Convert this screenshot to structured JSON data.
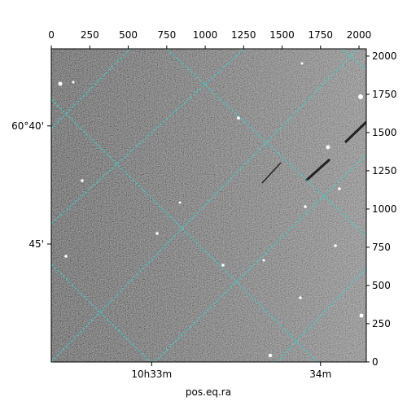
{
  "chart_data": {
    "type": "image",
    "xlabel": "pos.eq.ra",
    "xlim": [
      -0.5,
      2047.5
    ],
    "ylim": [
      -0.5,
      2047.5
    ],
    "xticks": [
      0,
      250,
      500,
      750,
      1000,
      1250,
      1500,
      1750,
      2000
    ],
    "yticks": [
      0,
      250,
      500,
      750,
      1000,
      1250,
      1500,
      1750,
      2000
    ],
    "world_xticks": [
      {
        "value": 652,
        "label": "10h33m"
      },
      {
        "value": 1750,
        "label": "34m"
      }
    ],
    "world_yticks": [
      {
        "value": 1543,
        "label": "60°40'"
      },
      {
        "value": 771,
        "label": "45'"
      }
    ]
  }
}
